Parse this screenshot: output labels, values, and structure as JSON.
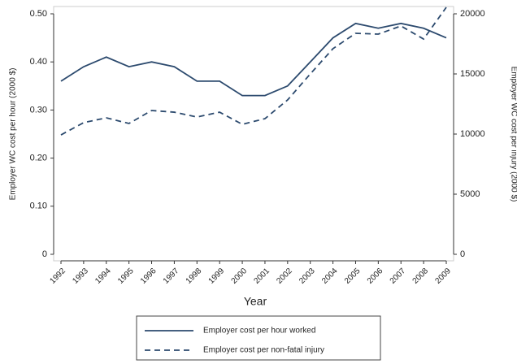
{
  "chart_data": {
    "type": "line",
    "xlabel": "Year",
    "ylabel": "Employer WC cost per hour (2000 $)",
    "y2label": "Employer WC cost per injury (2000 $)",
    "categories": [
      "1992",
      "1993",
      "1994",
      "1995",
      "1996",
      "1997",
      "1998",
      "1999",
      "2000",
      "2001",
      "2002",
      "2003",
      "2004",
      "2005",
      "2006",
      "2007",
      "2008",
      "2009"
    ],
    "series": [
      {
        "name": "Employer cost per hour worked",
        "color": "#2c4a6e",
        "dash": "solid",
        "values": [
          0.36,
          0.39,
          0.41,
          0.39,
          0.4,
          0.39,
          0.36,
          0.36,
          0.33,
          0.33,
          0.35,
          0.4,
          0.45,
          0.48,
          0.47,
          0.48,
          0.47,
          0.45
        ]
      },
      {
        "name": "Employer cost per non-fatal injury",
        "color": "#2c4a6e",
        "dash": "dashed",
        "axis": "y2",
        "values": [
          9930,
          10950,
          11350,
          10880,
          11960,
          11820,
          11420,
          11820,
          10810,
          11280,
          12840,
          15000,
          17100,
          18380,
          18310,
          18990,
          17900,
          20540
        ]
      }
    ],
    "ylim": [
      0,
      0.5
    ],
    "yticks": [
      0,
      {
        "value": 0.1,
        "label": "0.10"
      },
      {
        "value": 0.2,
        "label": "0.20"
      },
      {
        "value": 0.3,
        "label": "0.30"
      },
      {
        "value": 0.4,
        "label": "0.40"
      },
      {
        "value": 0.5,
        "label": "0.50"
      }
    ],
    "y2lim": [
      0,
      20000
    ],
    "y2ticks": [
      0,
      5000,
      10000,
      15000,
      20000
    ],
    "grid": false
  }
}
